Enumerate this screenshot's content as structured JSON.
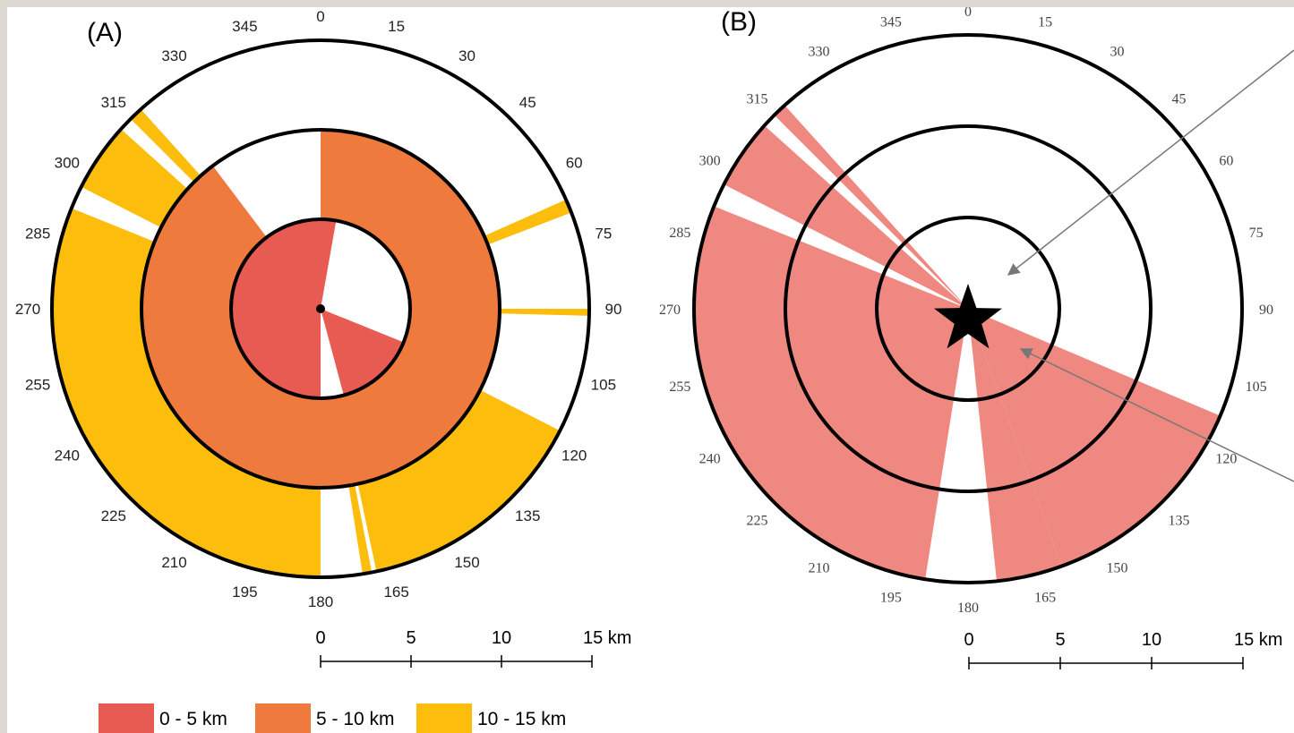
{
  "panel_a": {
    "label": "(A)",
    "angle_labels": [
      "0",
      "15",
      "30",
      "45",
      "60",
      "75",
      "90",
      "105",
      "120",
      "135",
      "150",
      "165",
      "180",
      "195",
      "210",
      "225",
      "240",
      "255",
      "270",
      "285",
      "300",
      "315",
      "330",
      "345"
    ],
    "sectors": [
      {
        "band": "0 - 5 km",
        "from": 180,
        "to": 360
      },
      {
        "band": "0 - 5 km",
        "from": 0,
        "to": 10
      },
      {
        "band": "0 - 5 km",
        "from": 112,
        "to": 165
      },
      {
        "band": "5 - 10 km",
        "from": 0,
        "to": 180
      },
      {
        "band": "5 - 10 km",
        "from": 12,
        "to": 13.5
      },
      {
        "band": "5 - 10 km",
        "from": 58,
        "to": 73
      },
      {
        "band": "5 - 10 km",
        "from": 78,
        "to": 84
      },
      {
        "band": "5 - 10 km",
        "from": 87,
        "to": 92
      },
      {
        "band": "5 - 10 km",
        "from": 96,
        "to": 101
      },
      {
        "band": "5 - 10 km",
        "from": 104,
        "to": 108
      },
      {
        "band": "5 - 10 km",
        "from": 113,
        "to": 180
      },
      {
        "band": "5 - 10 km",
        "from": 180,
        "to": 323
      },
      {
        "band": "10 - 15 km",
        "from": 180,
        "to": 292
      },
      {
        "band": "10 - 15 km",
        "from": 297,
        "to": 312
      },
      {
        "band": "10 - 15 km",
        "from": 315,
        "to": 318
      },
      {
        "band": "10 - 15 km",
        "from": 66,
        "to": 69
      },
      {
        "band": "10 - 15 km",
        "from": 90,
        "to": 91.5
      },
      {
        "band": "10 - 15 km",
        "from": 117,
        "to": 168
      },
      {
        "band": "10 - 15 km",
        "from": 169,
        "to": 171
      }
    ]
  },
  "panel_b": {
    "label": "(B)",
    "angle_labels": [
      "0",
      "15",
      "30",
      "45",
      "60",
      "75",
      "90",
      "105",
      "120",
      "135",
      "150",
      "165",
      "180",
      "195",
      "210",
      "225",
      "240",
      "255",
      "270",
      "285",
      "300",
      "315",
      "330",
      "345"
    ],
    "sectors": [
      {
        "from": 189,
        "to": 292
      },
      {
        "from": 297,
        "to": 312
      },
      {
        "from": 315,
        "to": 318
      },
      {
        "from": 113,
        "to": 160
      },
      {
        "from": 160,
        "to": 174
      }
    ],
    "marker": "star"
  },
  "scale_bar": {
    "ticks": [
      "0",
      "5",
      "10",
      "15 km"
    ]
  },
  "legend": {
    "items": [
      {
        "label": "0 - 5 km",
        "color": "#e85b52"
      },
      {
        "label": "5 - 10 km",
        "color": "#ee7a3d"
      },
      {
        "label": "10 - 15 km",
        "color": "#fdbd0c"
      }
    ]
  },
  "colors": {
    "band_0_5": "#e85b52",
    "band_5_10": "#ee7a3d",
    "band_10_15": "#fdbd0c",
    "panel_b_fill": "#ef8880",
    "ring": "#000000",
    "arrow": "#777777"
  }
}
